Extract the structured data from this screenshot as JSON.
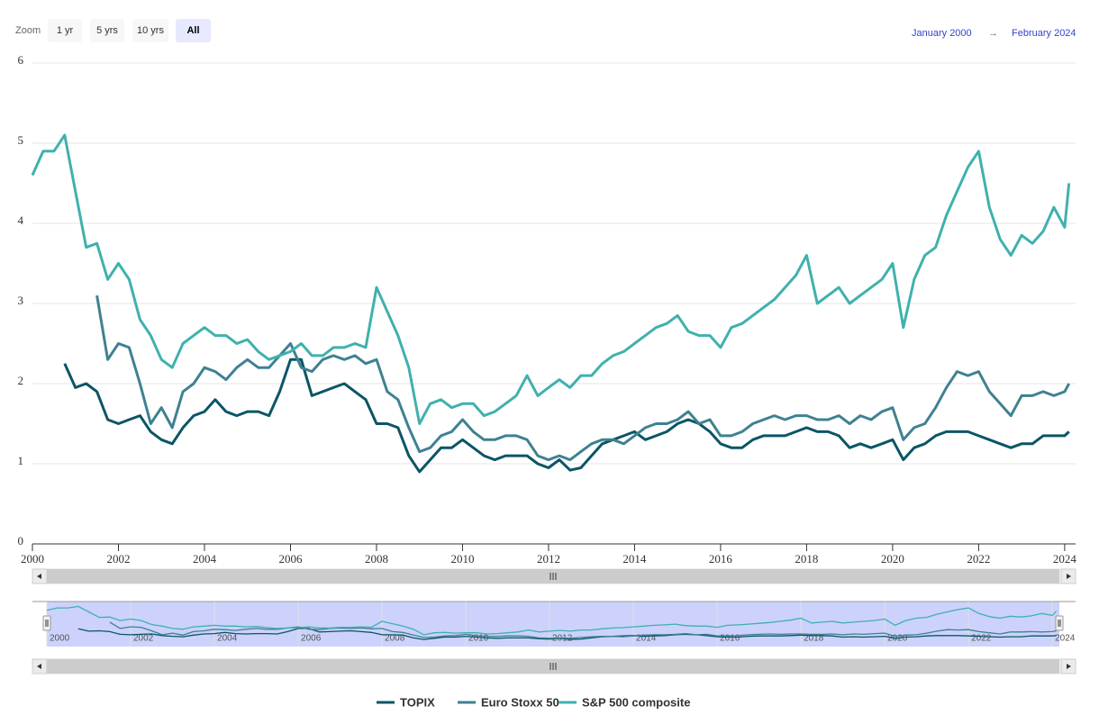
{
  "range_selector": {
    "label": "Zoom",
    "buttons": [
      "1 yr",
      "5 yrs",
      "10 yrs",
      "All"
    ],
    "selected": 3
  },
  "date_range": {
    "from": "January 2000",
    "arrow": "→",
    "to": "February 2024"
  },
  "chart_data": {
    "type": "line",
    "x": [
      2000,
      2000.25,
      2000.5,
      2000.75,
      2001,
      2001.25,
      2001.5,
      2001.75,
      2002,
      2002.25,
      2002.5,
      2002.75,
      2003,
      2003.25,
      2003.5,
      2003.75,
      2004,
      2004.25,
      2004.5,
      2004.75,
      2005,
      2005.25,
      2005.5,
      2005.75,
      2006,
      2006.25,
      2006.5,
      2006.75,
      2007,
      2007.25,
      2007.5,
      2007.75,
      2008,
      2008.25,
      2008.5,
      2008.75,
      2009,
      2009.25,
      2009.5,
      2009.75,
      2010,
      2010.25,
      2010.5,
      2010.75,
      2011,
      2011.25,
      2011.5,
      2011.75,
      2012,
      2012.25,
      2012.5,
      2012.75,
      2013,
      2013.25,
      2013.5,
      2013.75,
      2014,
      2014.25,
      2014.5,
      2014.75,
      2015,
      2015.25,
      2015.5,
      2015.75,
      2016,
      2016.25,
      2016.5,
      2016.75,
      2017,
      2017.25,
      2017.5,
      2017.75,
      2018,
      2018.25,
      2018.5,
      2018.75,
      2019,
      2019.25,
      2019.5,
      2019.75,
      2020,
      2020.25,
      2020.5,
      2020.75,
      2021,
      2021.25,
      2021.5,
      2021.75,
      2022,
      2022.25,
      2022.5,
      2022.75,
      2023,
      2023.25,
      2023.5,
      2023.75,
      2024,
      2024.1
    ],
    "series": [
      {
        "name": "TOPIX",
        "color": "#0b5566",
        "values": [
          null,
          null,
          null,
          2.25,
          1.95,
          2.0,
          1.9,
          1.55,
          1.5,
          1.55,
          1.6,
          1.4,
          1.3,
          1.25,
          1.45,
          1.6,
          1.65,
          1.8,
          1.65,
          1.6,
          1.65,
          1.65,
          1.6,
          1.9,
          2.3,
          2.3,
          1.85,
          1.9,
          1.95,
          2.0,
          1.9,
          1.8,
          1.5,
          1.5,
          1.45,
          1.1,
          0.9,
          1.05,
          1.2,
          1.2,
          1.3,
          1.2,
          1.1,
          1.05,
          1.1,
          1.1,
          1.1,
          1.0,
          0.95,
          1.05,
          0.92,
          0.95,
          1.1,
          1.25,
          1.3,
          1.35,
          1.4,
          1.3,
          1.35,
          1.4,
          1.5,
          1.55,
          1.5,
          1.4,
          1.25,
          1.2,
          1.2,
          1.3,
          1.35,
          1.35,
          1.35,
          1.4,
          1.45,
          1.4,
          1.4,
          1.35,
          1.2,
          1.25,
          1.2,
          1.25,
          1.3,
          1.05,
          1.2,
          1.25,
          1.35,
          1.4,
          1.4,
          1.4,
          1.35,
          1.3,
          1.25,
          1.2,
          1.25,
          1.25,
          1.35,
          1.35,
          1.35,
          1.4
        ]
      },
      {
        "name": "Euro Stoxx 50",
        "color": "#3f8191",
        "values": [
          null,
          null,
          null,
          null,
          null,
          null,
          3.1,
          2.3,
          2.5,
          2.45,
          2.0,
          1.5,
          1.7,
          1.45,
          1.9,
          2.0,
          2.2,
          2.15,
          2.05,
          2.2,
          2.3,
          2.2,
          2.2,
          2.35,
          2.5,
          2.2,
          2.15,
          2.3,
          2.35,
          2.3,
          2.35,
          2.25,
          2.3,
          1.9,
          1.8,
          1.45,
          1.15,
          1.2,
          1.35,
          1.4,
          1.55,
          1.4,
          1.3,
          1.3,
          1.35,
          1.35,
          1.3,
          1.1,
          1.05,
          1.1,
          1.05,
          1.15,
          1.25,
          1.3,
          1.3,
          1.25,
          1.35,
          1.45,
          1.5,
          1.5,
          1.55,
          1.65,
          1.5,
          1.55,
          1.35,
          1.35,
          1.4,
          1.5,
          1.55,
          1.6,
          1.55,
          1.6,
          1.6,
          1.55,
          1.55,
          1.6,
          1.5,
          1.6,
          1.55,
          1.65,
          1.7,
          1.3,
          1.45,
          1.5,
          1.7,
          1.95,
          2.15,
          2.1,
          2.15,
          1.9,
          1.75,
          1.6,
          1.85,
          1.85,
          1.9,
          1.85,
          1.9,
          2.0
        ]
      },
      {
        "name": "S&P 500 composite",
        "color": "#3fb1ad",
        "values": [
          4.6,
          4.9,
          4.9,
          5.1,
          4.4,
          3.7,
          3.75,
          3.3,
          3.5,
          3.3,
          2.8,
          2.6,
          2.3,
          2.2,
          2.5,
          2.6,
          2.7,
          2.6,
          2.6,
          2.5,
          2.55,
          2.4,
          2.3,
          2.35,
          2.4,
          2.5,
          2.35,
          2.35,
          2.45,
          2.45,
          2.5,
          2.45,
          3.2,
          2.9,
          2.6,
          2.2,
          1.5,
          1.75,
          1.8,
          1.7,
          1.75,
          1.75,
          1.6,
          1.65,
          1.75,
          1.85,
          2.1,
          1.85,
          1.95,
          2.05,
          1.95,
          2.1,
          2.1,
          2.25,
          2.35,
          2.4,
          2.5,
          2.6,
          2.7,
          2.75,
          2.85,
          2.65,
          2.6,
          2.6,
          2.45,
          2.7,
          2.75,
          2.85,
          2.95,
          3.05,
          3.2,
          3.35,
          3.6,
          3.0,
          3.1,
          3.2,
          3.0,
          3.1,
          3.2,
          3.3,
          3.5,
          2.7,
          3.3,
          3.6,
          3.7,
          4.1,
          4.4,
          4.7,
          4.9,
          4.2,
          3.8,
          3.6,
          3.85,
          3.75,
          3.9,
          4.2,
          3.95,
          4.5
        ]
      }
    ],
    "xlim": [
      2000,
      2024.17
    ],
    "xticks": [
      2000,
      2002,
      2004,
      2006,
      2008,
      2010,
      2012,
      2014,
      2016,
      2018,
      2020,
      2022,
      2024
    ],
    "ylim": [
      0,
      6
    ],
    "yticks": [
      0,
      1,
      2,
      3,
      4,
      5,
      6
    ],
    "grid": true,
    "legend": "bottom"
  }
}
